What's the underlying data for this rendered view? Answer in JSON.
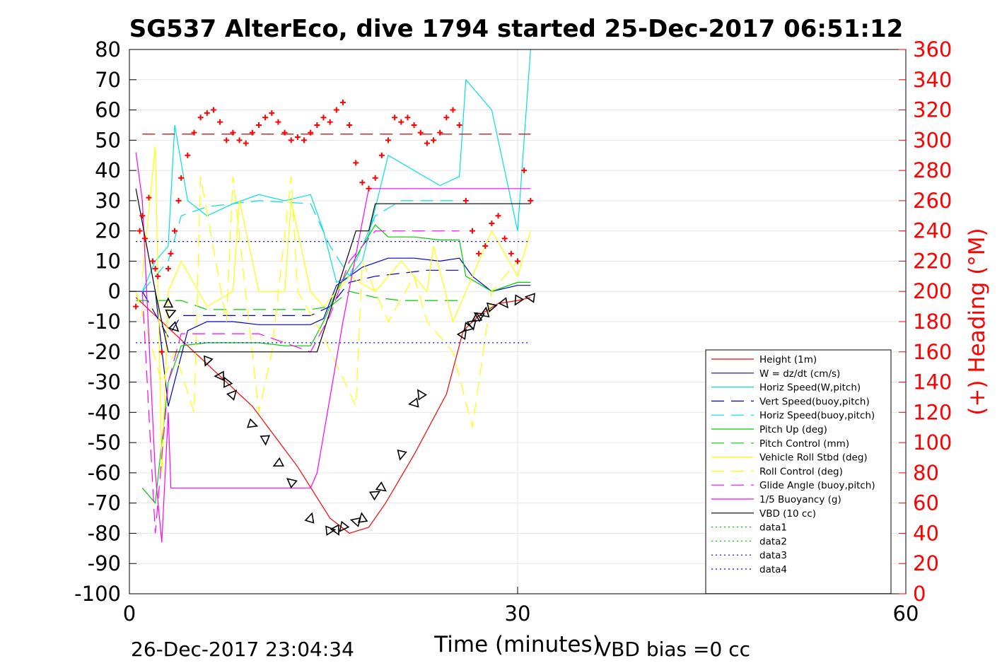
{
  "chart_data": {
    "type": "line",
    "title": "SG537 AlterEco, dive 1794 started 25-Dec-2017 06:51:12",
    "xlabel": "Time (minutes)",
    "ylabel": "",
    "y2label": "(+) Heading (°M)",
    "xlim": [
      0,
      60
    ],
    "ylim": [
      -100,
      80
    ],
    "y2lim": [
      0,
      360
    ],
    "x_ticks": [
      "0",
      "30",
      "60"
    ],
    "y_ticks": [
      "80",
      "70",
      "60",
      "50",
      "40",
      "30",
      "20",
      "10",
      "0",
      "-10",
      "-20",
      "-30",
      "-40",
      "-50",
      "-60",
      "-70",
      "-80",
      "-90",
      "-100"
    ],
    "y2_ticks": [
      "360",
      "340",
      "320",
      "300",
      "280",
      "260",
      "240",
      "220",
      "200",
      "180",
      "160",
      "140",
      "120",
      "100",
      "80",
      "60",
      "40",
      "20",
      "0"
    ],
    "grid": true,
    "legend_position": "bottom-right",
    "footer_left": "26-Dec-2017 23:04:34",
    "footer_right": "VBD bias =0 cc",
    "colors": {
      "axis": "#000000",
      "grid": "#e6e6e6",
      "right_axis": "#ff0000"
    },
    "series": [
      {
        "name": "Height (1m)",
        "color": "#ff0000",
        "style": "solid",
        "axis": "left",
        "x": [
          0.5,
          3.0,
          6.0,
          9.5,
          13.0,
          15.5,
          17.0,
          18.5,
          19.8,
          22.0,
          24.5,
          25.8,
          27.0,
          28.5,
          30.0,
          31.0
        ],
        "y": [
          -2,
          -12,
          -24,
          -38,
          -58,
          -75,
          -80,
          -78,
          -70,
          -54,
          -34,
          -13,
          -8,
          -4,
          -3,
          -2
        ]
      },
      {
        "name": "W = dz/dt (cm/s)",
        "color": "#0000cc",
        "style": "solid",
        "axis": "left",
        "x": [
          0,
          2.0,
          3.0,
          4.5,
          6.0,
          8.0,
          10.0,
          12.0,
          14.0,
          15.0,
          16.0,
          18.0,
          20.0,
          22.0,
          24.0,
          25.5,
          26.5,
          28.0,
          30.0,
          31.0
        ],
        "y": [
          0,
          0,
          -38,
          -13,
          -10,
          -10,
          -11,
          -11,
          -11,
          -9,
          2,
          8,
          11,
          11,
          10,
          11,
          5,
          0,
          2,
          2
        ]
      },
      {
        "name": "Horiz Speed(W,pitch)",
        "color": "#00e0e0",
        "style": "solid",
        "axis": "left",
        "x": [
          1.0,
          2.0,
          3.0,
          3.5,
          4.5,
          6.0,
          8.0,
          10.0,
          12.0,
          14.0,
          15.0,
          16.0,
          17.0,
          18.0,
          20.0,
          22.0,
          24.0,
          25.5,
          26.0,
          28.0,
          30.0,
          31.0
        ],
        "y": [
          0,
          10,
          15,
          55,
          30,
          25,
          29,
          32,
          30,
          32,
          20,
          3,
          5,
          10,
          45,
          40,
          35,
          38,
          70,
          60,
          20,
          80
        ]
      },
      {
        "name": "Vert Speed(buoy,pitch)",
        "color": "#0000cc",
        "style": "dash",
        "axis": "left",
        "x": [
          1.0,
          3.0,
          4.0,
          6.0,
          10.0,
          14.0,
          15.5,
          17.0,
          19.0,
          21.0,
          23.0,
          25.5
        ],
        "y": [
          0,
          -15,
          -8,
          -8,
          -8,
          -8,
          -5,
          3,
          5,
          6,
          7,
          7
        ]
      },
      {
        "name": "Horiz Speed(buoy,pitch)",
        "color": "#00e0e0",
        "style": "dash",
        "axis": "left",
        "x": [
          1.0,
          3.0,
          4.0,
          6.0,
          10.0,
          14.0,
          15.5,
          17.0,
          19.0,
          21.0,
          23.0,
          25.5
        ],
        "y": [
          0,
          10,
          25,
          28,
          30,
          29,
          15,
          5,
          25,
          30,
          30,
          30
        ]
      },
      {
        "name": "Pitch Up (deg)",
        "color": "#00cc00",
        "style": "solid",
        "axis": "left",
        "x": [
          1.0,
          2.0,
          3.0,
          4.0,
          6.0,
          8.0,
          10.0,
          12.0,
          14.0,
          15.0,
          16.0,
          18.0,
          19.0,
          20.0,
          22.0,
          24.0,
          25.5,
          26.0,
          28.0,
          30.0,
          31.0
        ],
        "y": [
          -65,
          -70,
          -30,
          -18,
          -17,
          -17,
          -17,
          -18,
          -18,
          -10,
          0,
          15,
          22,
          18,
          18,
          17,
          17,
          5,
          0,
          3,
          3
        ]
      },
      {
        "name": "Pitch Control (mm)",
        "color": "#00cc00",
        "style": "dash",
        "axis": "left",
        "x": [
          0.5,
          3.0,
          4.0,
          6.0,
          10.0,
          14.0,
          15.5,
          17.0,
          19.0,
          21.0,
          24.0,
          25.5
        ],
        "y": [
          -3,
          -3,
          -3,
          -6,
          -6,
          -6,
          -5,
          0,
          -2,
          -3,
          -3,
          -3
        ]
      },
      {
        "name": "Vehicle Roll Stbd (deg)",
        "color": "#ffff00",
        "style": "solid",
        "axis": "left",
        "x": [
          1.0,
          2.0,
          2.5,
          3.0,
          4.0,
          6.0,
          8.0,
          8.5,
          10.0,
          12.0,
          12.5,
          14.0,
          15.0,
          16.0,
          17.0,
          19.0,
          21.0,
          23.0,
          23.5,
          25.0,
          26.0,
          28.0,
          30.0,
          31.0
        ],
        "y": [
          5,
          48,
          -60,
          0,
          10,
          -5,
          0,
          30,
          0,
          0,
          30,
          0,
          -5,
          0,
          5,
          0,
          10,
          0,
          15,
          -10,
          0,
          20,
          5,
          20
        ]
      },
      {
        "name": "Roll Control (deg)",
        "color": "#ffff00",
        "style": "dash",
        "axis": "left",
        "x": [
          0.5,
          2.5,
          3.5,
          5.0,
          5.5,
          7.5,
          8.0,
          10.0,
          11.0,
          12.5,
          13.0,
          15.0,
          17.5,
          18.0,
          20.0,
          22.0,
          23.0,
          25.0,
          26.5,
          28.0,
          30.0
        ],
        "y": [
          0,
          -30,
          -20,
          -40,
          38,
          -10,
          38,
          -40,
          -20,
          38,
          0,
          -15,
          -38,
          10,
          -10,
          5,
          -10,
          -20,
          -45,
          0,
          10
        ]
      },
      {
        "name": "Glide Angle (buoy,pitch)",
        "color": "#ff00ff",
        "style": "dash",
        "axis": "left",
        "x": [
          1.0,
          2.0,
          3.0,
          4.0,
          6.0,
          10.0,
          14.0,
          15.5,
          17.0,
          19.0,
          21.0,
          23.0,
          25.5
        ],
        "y": [
          0,
          -80,
          -30,
          -14,
          -14,
          -14,
          -20,
          -8,
          10,
          20,
          20,
          20,
          20
        ]
      },
      {
        "name": "1/5 Buoyancy (g)",
        "color": "#ff00ff",
        "style": "solid",
        "axis": "left",
        "x": [
          0.5,
          1.0,
          2.0,
          2.5,
          3.0,
          3.2,
          6.0,
          10.0,
          14.0,
          14.5,
          16.5,
          18.5,
          19.5,
          21.0,
          25.0,
          27.0,
          30.0,
          31.0
        ],
        "y": [
          46,
          30,
          -60,
          -83,
          -40,
          -65,
          -65,
          -65,
          -65,
          -60,
          -10,
          34,
          34,
          34,
          34,
          34,
          34,
          34
        ]
      },
      {
        "name": "VBD (10 cc)",
        "color": "#000000",
        "style": "solid",
        "axis": "left",
        "x": [
          0.5,
          2.0,
          3.0,
          14.5,
          16.0,
          17.5,
          18.5,
          19.0,
          28.0,
          31.0
        ],
        "y": [
          34,
          0,
          -20,
          -20,
          0,
          20,
          20,
          29,
          29,
          29
        ]
      },
      {
        "name": "data1",
        "color": "#00cc00",
        "style": "dot",
        "axis": "left",
        "x": [],
        "y": []
      },
      {
        "name": "data2",
        "color": "#00cc00",
        "style": "dot",
        "axis": "left",
        "x": [],
        "y": []
      },
      {
        "name": "data3",
        "color": "#0000cc",
        "style": "dot",
        "axis": "left",
        "x": [
          0.5,
          31.0
        ],
        "y": [
          16.5,
          16.5
        ]
      },
      {
        "name": "data4",
        "color": "#0000cc",
        "style": "dot",
        "axis": "left",
        "x": [
          0.5,
          31.0
        ],
        "y": [
          -17,
          -17
        ]
      }
    ],
    "reference_lines": [
      {
        "color": "#cc0000",
        "style": "dash",
        "axis": "right",
        "x": [
          1.0,
          31.0
        ],
        "y": [
          304,
          304
        ]
      }
    ],
    "heading_points": {
      "color": "#ff0000",
      "marker": "+",
      "axis": "right",
      "x": [
        0.5,
        0.8,
        1.0,
        1.2,
        1.5,
        1.8,
        2.0,
        2.2,
        2.5,
        3.0,
        3.2,
        3.5,
        3.8,
        4.0,
        4.5,
        5.0,
        5.5,
        6.0,
        6.5,
        7.0,
        7.5,
        8.0,
        8.5,
        9.0,
        9.5,
        10.0,
        10.5,
        11.0,
        11.5,
        12.0,
        12.5,
        13.0,
        13.5,
        14.0,
        14.5,
        15.0,
        15.5,
        16.0,
        16.5,
        17.0,
        17.5,
        18.0,
        18.5,
        19.0,
        19.5,
        20.0,
        20.5,
        21.0,
        21.5,
        22.0,
        22.5,
        23.0,
        23.5,
        24.0,
        24.5,
        25.0,
        25.5,
        26.0,
        26.5,
        27.0,
        27.5,
        28.0,
        28.5,
        29.0,
        29.5,
        30.0,
        30.5,
        31.0
      ],
      "y": [
        190,
        240,
        250,
        235,
        262,
        220,
        215,
        210,
        160,
        215,
        225,
        240,
        260,
        275,
        290,
        305,
        315,
        318,
        320,
        312,
        300,
        305,
        300,
        298,
        305,
        310,
        315,
        318,
        312,
        305,
        300,
        302,
        300,
        305,
        310,
        315,
        312,
        320,
        325,
        310,
        285,
        272,
        268,
        275,
        290,
        300,
        315,
        312,
        315,
        310,
        305,
        298,
        300,
        305,
        315,
        320,
        310,
        260,
        240,
        225,
        230,
        245,
        250,
        235,
        225,
        220,
        280,
        260
      ]
    },
    "dive_markers": {
      "color": "#000000",
      "marker": "triangle",
      "x": [
        3.0,
        3.2,
        3.5,
        6.0,
        7.0,
        7.5,
        8.0,
        9.5,
        10.5,
        11.5,
        12.5,
        14.0,
        15.5,
        16.0,
        16.5,
        17.5,
        18.0,
        19.0,
        19.5,
        21.0,
        22.0,
        22.5,
        25.8,
        26.2,
        26.5,
        26.8,
        27.0,
        27.5,
        28.0,
        29.0,
        30.0,
        31.0
      ],
      "y": [
        -4,
        -7,
        -12,
        -23,
        -28,
        -30,
        -34,
        -44,
        -49,
        -57,
        -63,
        -75,
        -79,
        -79,
        -78,
        -76,
        -75,
        -67,
        -65,
        -54,
        -37,
        -34,
        -14,
        -12,
        -11,
        -9,
        -8,
        -7,
        -5,
        -4,
        -3,
        -2
      ]
    }
  }
}
